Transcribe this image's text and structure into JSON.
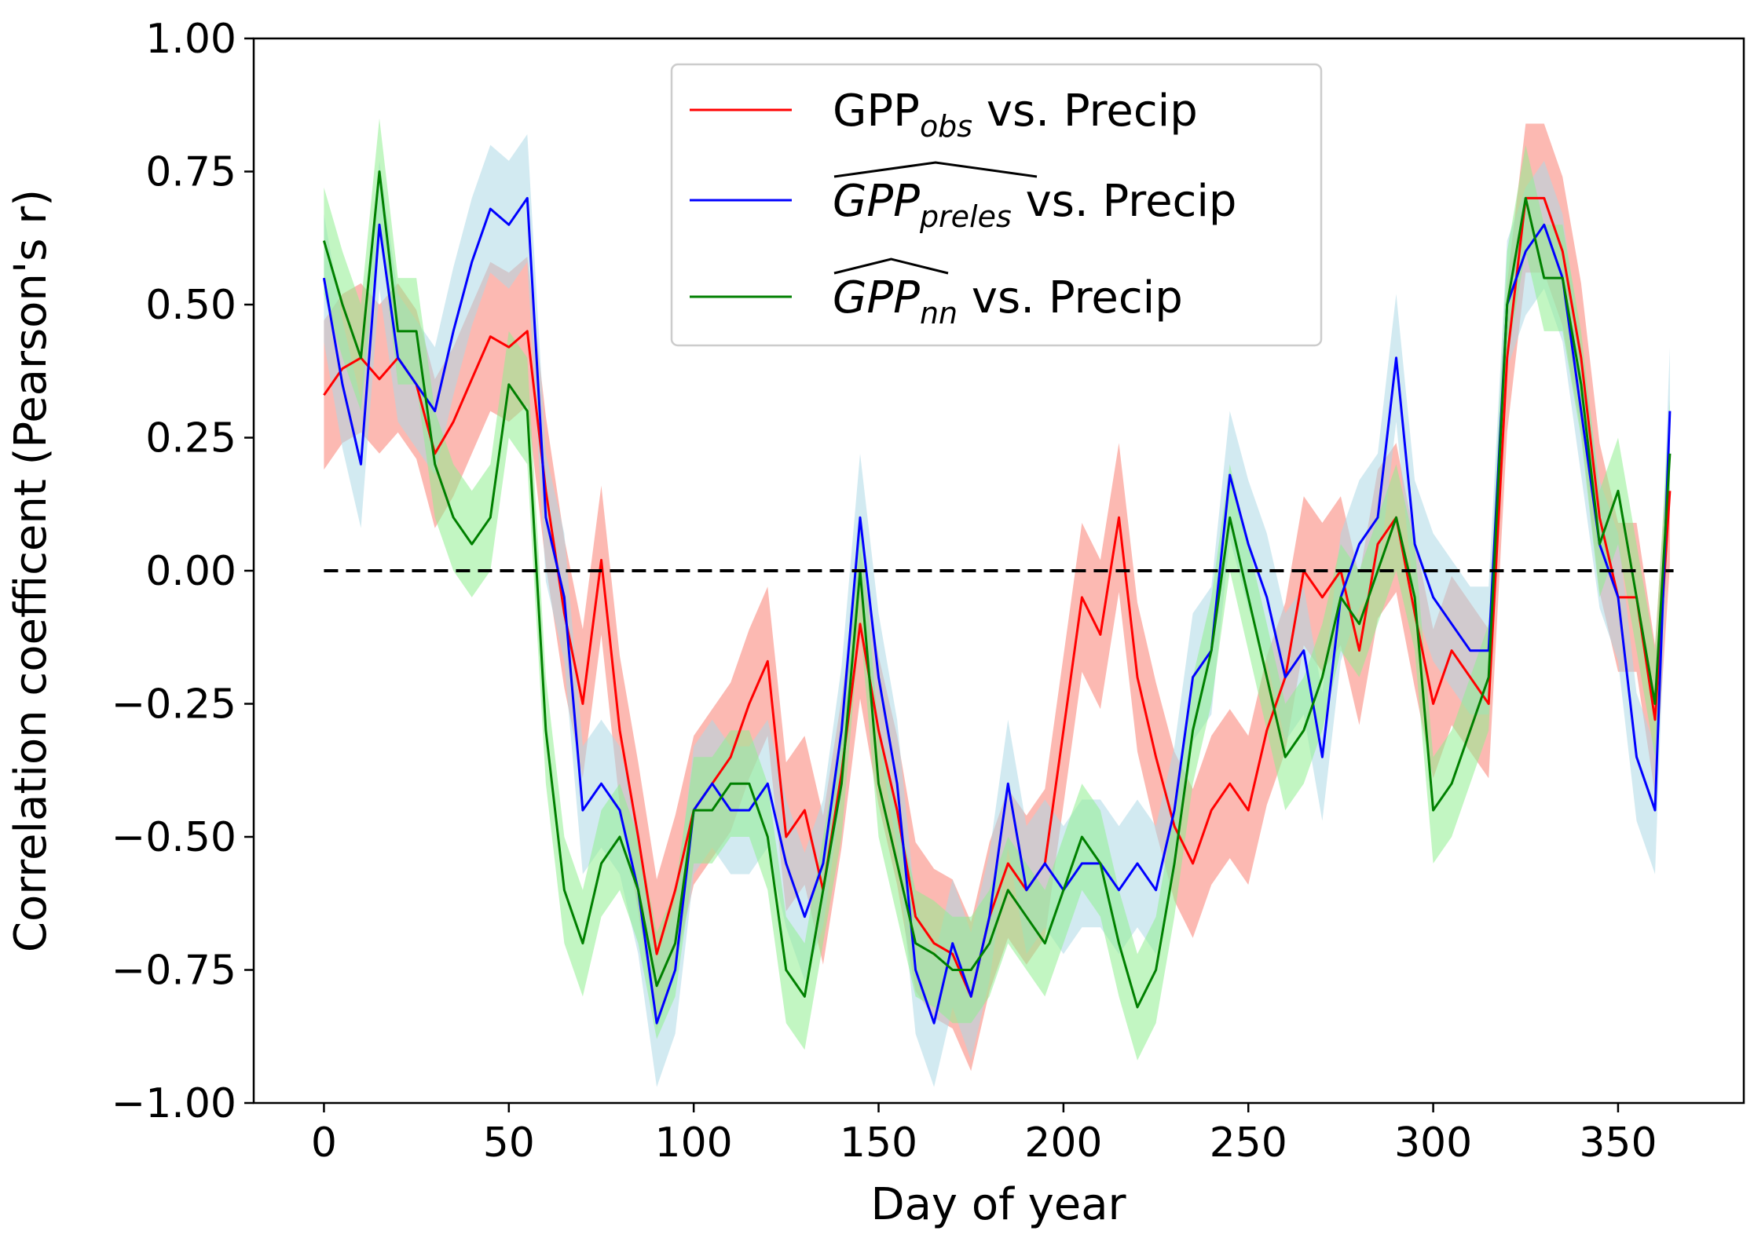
{
  "chart_data": {
    "type": "line",
    "title": "",
    "xlabel": "Day of year",
    "ylabel": "Correlation coefficent (Pearson's r)",
    "xlim": [
      -19,
      384
    ],
    "ylim": [
      -1.0,
      1.0
    ],
    "xticks": [
      0,
      50,
      100,
      150,
      200,
      250,
      300,
      350
    ],
    "yticks": [
      -1.0,
      -0.75,
      -0.5,
      -0.25,
      0.0,
      0.25,
      0.5,
      0.75,
      1.0
    ],
    "xtick_labels": [
      "0",
      "50",
      "100",
      "150",
      "200",
      "250",
      "300",
      "350"
    ],
    "ytick_labels": [
      "−1.00",
      "−0.75",
      "−0.50",
      "−0.25",
      "0.00",
      "0.25",
      "0.50",
      "0.75",
      "1.00"
    ],
    "grid": false,
    "legend_position": "top-center",
    "reference_line": {
      "y": 0.0,
      "x_range": [
        0,
        365
      ],
      "style": "dashed",
      "color": "#000000"
    },
    "x": [
      0,
      5,
      10,
      15,
      20,
      25,
      30,
      35,
      40,
      45,
      50,
      55,
      60,
      65,
      70,
      75,
      80,
      85,
      90,
      95,
      100,
      105,
      110,
      115,
      120,
      125,
      130,
      135,
      140,
      145,
      150,
      155,
      160,
      165,
      170,
      175,
      180,
      185,
      190,
      195,
      200,
      205,
      210,
      215,
      220,
      225,
      230,
      235,
      240,
      245,
      250,
      255,
      260,
      265,
      270,
      275,
      280,
      285,
      290,
      295,
      300,
      305,
      310,
      315,
      320,
      325,
      330,
      335,
      340,
      345,
      350,
      355,
      360,
      364
    ],
    "series": [
      {
        "name": "GPP_obs vs. Precip",
        "label_base": "GPP",
        "label_sub": "obs",
        "label_suffix": " vs. Precip",
        "line_color": "#ff0000",
        "band_color": "#fa8072",
        "band_width": 0.14,
        "values": [
          0.33,
          0.38,
          0.4,
          0.36,
          0.4,
          0.35,
          0.22,
          0.28,
          0.36,
          0.44,
          0.42,
          0.45,
          0.15,
          -0.08,
          -0.25,
          0.02,
          -0.3,
          -0.5,
          -0.72,
          -0.6,
          -0.45,
          -0.4,
          -0.35,
          -0.25,
          -0.17,
          -0.5,
          -0.45,
          -0.6,
          -0.38,
          -0.1,
          -0.3,
          -0.45,
          -0.65,
          -0.7,
          -0.72,
          -0.8,
          -0.65,
          -0.55,
          -0.6,
          -0.55,
          -0.3,
          -0.05,
          -0.12,
          0.1,
          -0.2,
          -0.35,
          -0.48,
          -0.55,
          -0.45,
          -0.4,
          -0.45,
          -0.3,
          -0.2,
          0.0,
          -0.05,
          0.0,
          -0.15,
          0.05,
          0.1,
          -0.08,
          -0.25,
          -0.15,
          -0.2,
          -0.25,
          0.4,
          0.7,
          0.7,
          0.6,
          0.4,
          0.1,
          -0.05,
          -0.05,
          -0.28,
          0.15
        ]
      },
      {
        "name": "GPP_preles vs. Precip",
        "label_base": "GPP",
        "label_sub": "preles",
        "label_suffix": " vs. Precip",
        "line_color": "#0000ff",
        "band_color": "#add8e6",
        "band_width": 0.12,
        "values": [
          0.55,
          0.35,
          0.2,
          0.65,
          0.4,
          0.35,
          0.3,
          0.45,
          0.58,
          0.68,
          0.65,
          0.7,
          0.1,
          -0.05,
          -0.45,
          -0.4,
          -0.45,
          -0.6,
          -0.85,
          -0.75,
          -0.45,
          -0.4,
          -0.45,
          -0.45,
          -0.4,
          -0.55,
          -0.65,
          -0.55,
          -0.3,
          0.1,
          -0.2,
          -0.4,
          -0.75,
          -0.85,
          -0.7,
          -0.8,
          -0.65,
          -0.4,
          -0.6,
          -0.55,
          -0.6,
          -0.55,
          -0.55,
          -0.6,
          -0.55,
          -0.6,
          -0.45,
          -0.2,
          -0.15,
          0.18,
          0.05,
          -0.05,
          -0.2,
          -0.15,
          -0.35,
          -0.05,
          0.05,
          0.1,
          0.4,
          0.05,
          -0.05,
          -0.1,
          -0.15,
          -0.15,
          0.5,
          0.6,
          0.65,
          0.55,
          0.3,
          0.05,
          -0.05,
          -0.35,
          -0.45,
          0.3
        ]
      },
      {
        "name": "GPP_nn vs. Precip",
        "label_base": "GPP",
        "label_sub": "nn",
        "label_suffix": " vs. Precip",
        "line_color": "#008000",
        "band_color": "#90ee90",
        "band_width": 0.1,
        "values": [
          0.62,
          0.5,
          0.4,
          0.75,
          0.45,
          0.45,
          0.2,
          0.1,
          0.05,
          0.1,
          0.35,
          0.3,
          -0.3,
          -0.6,
          -0.7,
          -0.55,
          -0.5,
          -0.6,
          -0.78,
          -0.7,
          -0.45,
          -0.45,
          -0.4,
          -0.4,
          -0.5,
          -0.75,
          -0.8,
          -0.6,
          -0.4,
          0.0,
          -0.4,
          -0.55,
          -0.7,
          -0.72,
          -0.75,
          -0.75,
          -0.7,
          -0.6,
          -0.65,
          -0.7,
          -0.6,
          -0.5,
          -0.55,
          -0.7,
          -0.82,
          -0.75,
          -0.55,
          -0.3,
          -0.15,
          0.1,
          -0.05,
          -0.2,
          -0.35,
          -0.3,
          -0.2,
          -0.05,
          -0.1,
          0.0,
          0.1,
          -0.05,
          -0.45,
          -0.4,
          -0.3,
          -0.2,
          0.5,
          0.7,
          0.55,
          0.55,
          0.35,
          0.05,
          0.15,
          -0.05,
          -0.25,
          0.22
        ]
      }
    ]
  }
}
